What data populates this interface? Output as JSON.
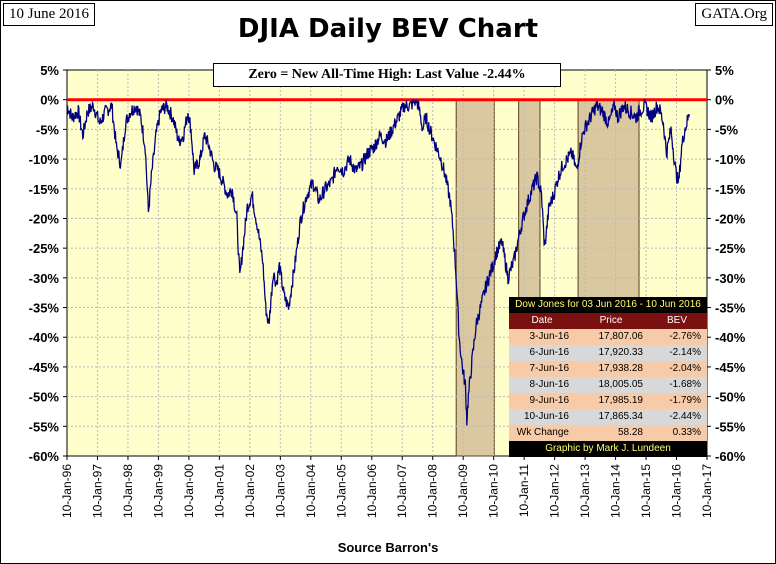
{
  "header": {
    "date_label": "10 June 2016",
    "source_site": "GATA.Org"
  },
  "chart_data": {
    "type": "line",
    "title": "DJIA Daily BEV Chart",
    "xlabel": "Source Barron's",
    "ylabel": "",
    "annotation": "Zero = New All-Time High: Last Value  -2.44%",
    "x_ticks": [
      "10-Jan-96",
      "10-Jan-97",
      "10-Jan-98",
      "10-Jan-99",
      "10-Jan-00",
      "10-Jan-01",
      "10-Jan-02",
      "10-Jan-03",
      "10-Jan-04",
      "10-Jan-05",
      "10-Jan-06",
      "10-Jan-07",
      "10-Jan-08",
      "10-Jan-09",
      "10-Jan-10",
      "10-Jan-11",
      "10-Jan-12",
      "10-Jan-13",
      "10-Jan-14",
      "10-Jan-15",
      "10-Jan-16",
      "10-Jan-17"
    ],
    "y_ticks": [
      "5%",
      "0%",
      "-5%",
      "-10%",
      "-15%",
      "-20%",
      "-25%",
      "-30%",
      "-35%",
      "-40%",
      "-45%",
      "-50%",
      "-55%",
      "-60%"
    ],
    "ylim": [
      -60,
      5
    ],
    "xlim": [
      1996.03,
      2017.03
    ],
    "grid": true,
    "reference_line": {
      "y": 0,
      "color": "#ff0000"
    },
    "shaded_regions": [
      [
        2008.8,
        2010.05
      ],
      [
        2010.85,
        2011.55
      ],
      [
        2012.8,
        2014.8
      ]
    ],
    "series": [
      {
        "color": "#000080",
        "x": [
          1996.03,
          1996.2,
          1996.4,
          1996.55,
          1996.7,
          1996.9,
          1997.1,
          1997.3,
          1997.5,
          1997.65,
          1997.8,
          1997.95,
          1998.1,
          1998.3,
          1998.45,
          1998.6,
          1998.7,
          1998.8,
          1998.95,
          1999.1,
          1999.3,
          1999.5,
          1999.7,
          1999.85,
          2000.0,
          2000.1,
          2000.2,
          2000.4,
          2000.55,
          2000.7,
          2000.85,
          2001.0,
          2001.15,
          2001.3,
          2001.45,
          2001.6,
          2001.7,
          2001.8,
          2001.95,
          2002.1,
          2002.3,
          2002.45,
          2002.55,
          2002.65,
          2002.8,
          2002.9,
          2003.0,
          2003.15,
          2003.3,
          2003.5,
          2003.7,
          2003.9,
          2004.1,
          2004.3,
          2004.5,
          2004.7,
          2004.9,
          2005.1,
          2005.3,
          2005.5,
          2005.7,
          2005.9,
          2006.1,
          2006.3,
          2006.5,
          2006.7,
          2006.9,
          2007.1,
          2007.3,
          2007.5,
          2007.6,
          2007.7,
          2007.8,
          2008.0,
          2008.15,
          2008.3,
          2008.45,
          2008.6,
          2008.7,
          2008.8,
          2008.9,
          2009.0,
          2009.1,
          2009.15,
          2009.2,
          2009.3,
          2009.45,
          2009.6,
          2009.8,
          2010.0,
          2010.1,
          2010.3,
          2010.5,
          2010.7,
          2010.9,
          2011.1,
          2011.3,
          2011.45,
          2011.6,
          2011.7,
          2011.85,
          2012.0,
          2012.15,
          2012.3,
          2012.45,
          2012.6,
          2012.75,
          2012.9,
          2013.0,
          2013.2,
          2013.4,
          2013.6,
          2013.8,
          2014.0,
          2014.1,
          2014.3,
          2014.5,
          2014.7,
          2014.8,
          2015.0,
          2015.2,
          2015.4,
          2015.5,
          2015.6,
          2015.7,
          2015.85,
          2016.0,
          2016.1,
          2016.2,
          2016.3,
          2016.45
        ],
        "values": [
          -1,
          -3,
          -2,
          -6,
          -2,
          -1,
          -4,
          -2,
          -1,
          -8,
          -11,
          -4,
          -2,
          -1,
          -3,
          -8,
          -19,
          -13,
          -6,
          -2,
          -1,
          -3,
          -7,
          -6,
          -2,
          -5,
          -12,
          -10,
          -6,
          -8,
          -11,
          -12,
          -14,
          -16,
          -15,
          -20,
          -30,
          -25,
          -18,
          -16,
          -22,
          -27,
          -35,
          -38,
          -29,
          -31,
          -28,
          -33,
          -35,
          -28,
          -20,
          -16,
          -14,
          -17,
          -15,
          -14,
          -11,
          -12,
          -10,
          -12,
          -11,
          -9,
          -8,
          -6,
          -7,
          -5,
          -3,
          -1,
          -1,
          0,
          -2,
          -5,
          -3,
          -6,
          -8,
          -10,
          -13,
          -17,
          -22,
          -30,
          -40,
          -45,
          -48,
          -54,
          -50,
          -45,
          -38,
          -35,
          -31,
          -28,
          -26,
          -24,
          -30,
          -27,
          -22,
          -18,
          -15,
          -13,
          -16,
          -25,
          -18,
          -16,
          -13,
          -11,
          -10,
          -9,
          -12,
          -7,
          -5,
          -3,
          -1,
          -2,
          -4,
          -1,
          -3,
          -1,
          -2,
          -3,
          -2,
          -1,
          -3,
          -1,
          -2,
          -4,
          -9,
          -5,
          -12,
          -14,
          -8,
          -5,
          -2.44
        ]
      }
    ]
  },
  "weekly_table": {
    "caption": "Dow Jones for 03 Jun 2016 - 10 Jun 2016",
    "headers": [
      "Date",
      "Price",
      "BEV"
    ],
    "rows": [
      [
        "3-Jun-16",
        "17,807.06",
        "-2.76%"
      ],
      [
        "6-Jun-16",
        "17,920.33",
        "-2.14%"
      ],
      [
        "7-Jun-16",
        "17,938.28",
        "-2.04%"
      ],
      [
        "8-Jun-16",
        "18,005.05",
        "-1.68%"
      ],
      [
        "9-Jun-16",
        "17,985.19",
        "-1.79%"
      ],
      [
        "10-Jun-16",
        "17,865.34",
        "-2.44%"
      ]
    ],
    "wk_change": [
      "Wk Change",
      "58.28",
      "0.33%"
    ],
    "credit": "Graphic by Mark J. Lundeen"
  }
}
